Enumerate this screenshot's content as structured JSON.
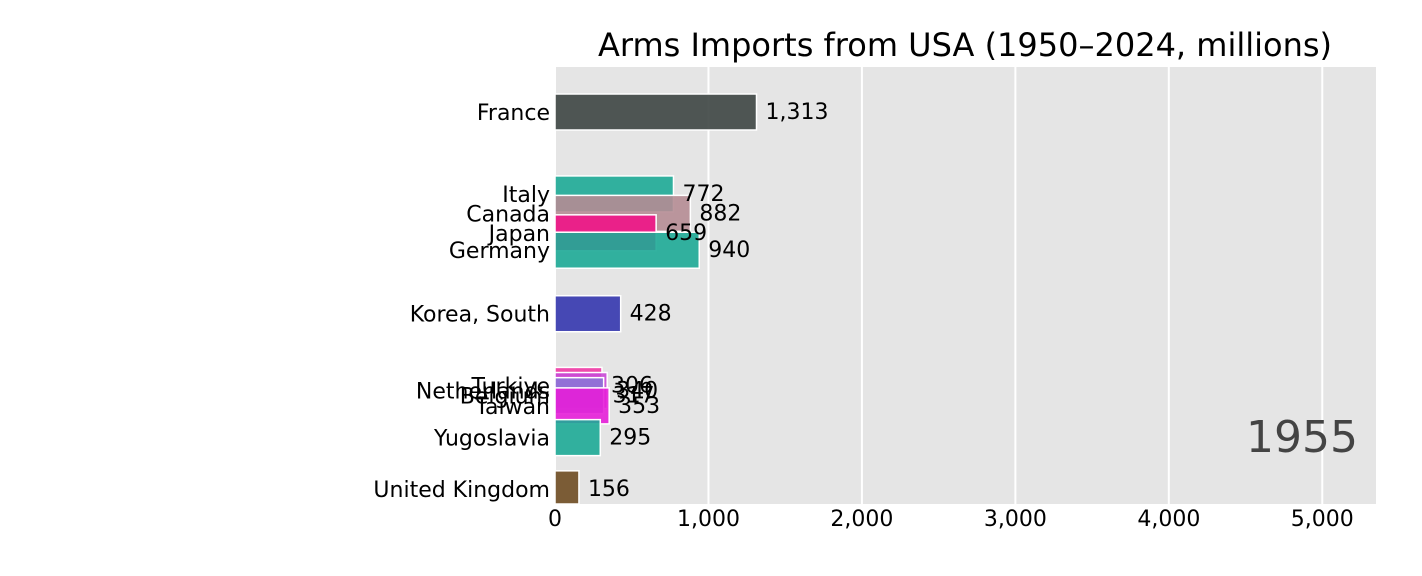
{
  "chart_data": {
    "type": "bar",
    "orientation": "horizontal",
    "title": "Arms Imports from USA (1950–2024, millions)",
    "xlabel": "",
    "ylabel": "",
    "year": "1955",
    "xlim": [
      0,
      5350
    ],
    "xticks": [
      0,
      1000,
      2000,
      3000,
      4000,
      5000
    ],
    "xtick_labels": [
      "0",
      "1,000",
      "2,000",
      "3,000",
      "4,000",
      "5,000"
    ],
    "grid": true,
    "legend": "none",
    "colors": {
      "panel": "#e5e5e5",
      "grid": "#ffffff"
    },
    "bars": [
      {
        "category": "France",
        "value": 1313,
        "value_label": "1,313",
        "rank_pos": 0,
        "color": "#3d4543"
      },
      {
        "category": "Italy",
        "value": 772,
        "value_label": "772",
        "rank_pos": 1.6,
        "color": "#1daa96"
      },
      {
        "category": "Canada",
        "value": 882,
        "value_label": "882",
        "rank_pos": 1.98,
        "color": "#b58c93"
      },
      {
        "category": "Japan",
        "value": 659,
        "value_label": "659",
        "rank_pos": 2.36,
        "color": "#f01487"
      },
      {
        "category": "Germany",
        "value": 940,
        "value_label": "940",
        "rank_pos": 2.7,
        "color": "#1daa96"
      },
      {
        "category": "Korea, South",
        "value": 428,
        "value_label": "428",
        "rank_pos": 3.94,
        "color": "#3436ae"
      },
      {
        "category": "Turkiye",
        "value": 306,
        "value_label": "306",
        "rank_pos": 5.34,
        "color": "#f03aa5"
      },
      {
        "category": "Netherlands",
        "value": 340,
        "value_label": "340",
        "rank_pos": 5.44,
        "color": "#c94ad6"
      },
      {
        "category": "Belgium",
        "value": 317,
        "value_label": "317",
        "rank_pos": 5.54,
        "color": "#8c74d6"
      },
      {
        "category": "Taiwan",
        "value": 353,
        "value_label": "353",
        "rank_pos": 5.74,
        "color": "#e51ed8"
      },
      {
        "category": "Yugoslavia",
        "value": 295,
        "value_label": "295",
        "rank_pos": 6.36,
        "color": "#1daa96"
      },
      {
        "category": "United Kingdom",
        "value": 156,
        "value_label": "156",
        "rank_pos": 7.36,
        "color": "#6f4c22"
      }
    ]
  }
}
